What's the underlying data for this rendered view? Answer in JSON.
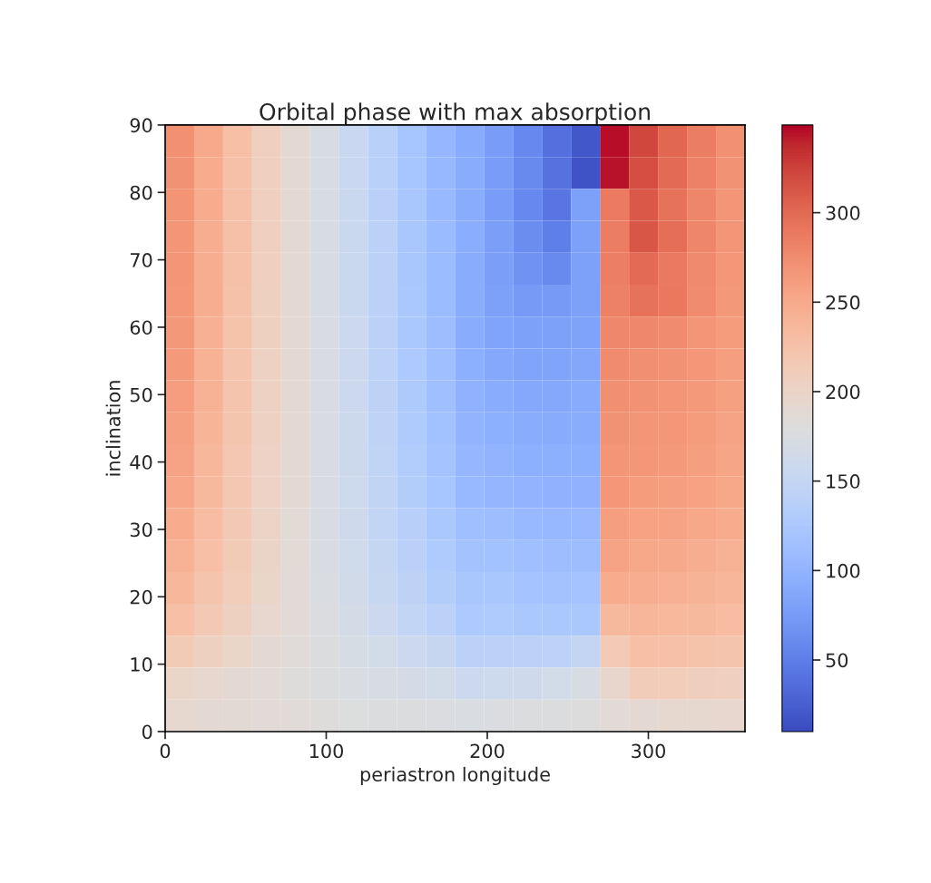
{
  "chart_data": {
    "type": "heatmap",
    "title": "Orbital phase with max absorption",
    "xlabel": "periastron longitude",
    "ylabel": "inclination",
    "xlim": [
      0,
      360
    ],
    "xticks": [
      0,
      100,
      200,
      300
    ],
    "ylim": [
      0,
      90
    ],
    "yticks": [
      0,
      10,
      20,
      30,
      40,
      50,
      60,
      70,
      80,
      90
    ],
    "clim": [
      10,
      349
    ],
    "cticks": [
      50,
      100,
      150,
      200,
      250,
      300
    ],
    "cells": [
      [
        272,
        250,
        228,
        207,
        190,
        172,
        155,
        138,
        120,
        104,
        90,
        75,
        58,
        38,
        18,
        346,
        322,
        302,
        286,
        272
      ],
      [
        270,
        248,
        226,
        206,
        189,
        172,
        155,
        138,
        121,
        105,
        91,
        76,
        60,
        40,
        16,
        344,
        318,
        300,
        284,
        270
      ],
      [
        269,
        248,
        227,
        206,
        190,
        172,
        156,
        139,
        122,
        106,
        92,
        76,
        58,
        42,
        80,
        287,
        311,
        294,
        279,
        267
      ],
      [
        268,
        247,
        226,
        206,
        190,
        172,
        156,
        140,
        122,
        107,
        93,
        78,
        62,
        50,
        80,
        286,
        312,
        297,
        280,
        267
      ],
      [
        267,
        247,
        226,
        206,
        190,
        172,
        156,
        140,
        123,
        108,
        92,
        78,
        68,
        60,
        80,
        285,
        300,
        289,
        277,
        266
      ],
      [
        266,
        246,
        225,
        205,
        189,
        172,
        156,
        141,
        124,
        109,
        92,
        80,
        74,
        74,
        80,
        283,
        294,
        290,
        276,
        265
      ],
      [
        265,
        244,
        224,
        205,
        189,
        173,
        157,
        141,
        125,
        110,
        92,
        84,
        80,
        80,
        82,
        278,
        278,
        275,
        268,
        262
      ],
      [
        263,
        243,
        223,
        204,
        189,
        173,
        157,
        142,
        126,
        112,
        94,
        88,
        84,
        84,
        86,
        276,
        273,
        270,
        266,
        260
      ],
      [
        261,
        242,
        222,
        204,
        189,
        173,
        158,
        143,
        127,
        113,
        98,
        92,
        88,
        88,
        90,
        273,
        270,
        268,
        264,
        258
      ],
      [
        258,
        240,
        221,
        203,
        189,
        173,
        159,
        144,
        129,
        115,
        100,
        96,
        92,
        90,
        92,
        270,
        268,
        266,
        262,
        256
      ],
      [
        255,
        237,
        219,
        202,
        188,
        173,
        159,
        146,
        131,
        118,
        104,
        100,
        96,
        94,
        95,
        268,
        266,
        264,
        260,
        254
      ],
      [
        253,
        235,
        218,
        201,
        188,
        174,
        160,
        147,
        133,
        120,
        106,
        102,
        99,
        97,
        98,
        266,
        262,
        260,
        257,
        252
      ],
      [
        248,
        232,
        216,
        200,
        187,
        174,
        161,
        149,
        136,
        124,
        112,
        110,
        106,
        105,
        106,
        260,
        257,
        256,
        252,
        248
      ],
      [
        243,
        228,
        213,
        199,
        187,
        174,
        163,
        151,
        139,
        128,
        116,
        115,
        112,
        110,
        110,
        255,
        252,
        250,
        247,
        243
      ],
      [
        237,
        223,
        210,
        197,
        186,
        175,
        164,
        154,
        143,
        133,
        122,
        122,
        118,
        117,
        118,
        248,
        246,
        244,
        241,
        238
      ],
      [
        228,
        216,
        205,
        194,
        185,
        176,
        167,
        158,
        149,
        140,
        126,
        128,
        124,
        124,
        125,
        235,
        238,
        236,
        234,
        232
      ],
      [
        213,
        205,
        197,
        190,
        184,
        177,
        171,
        165,
        158,
        153,
        140,
        140,
        140,
        142,
        150,
        215,
        228,
        226,
        224,
        222
      ],
      [
        198,
        194,
        190,
        185,
        182,
        178,
        175,
        172,
        168,
        165,
        158,
        160,
        162,
        165,
        172,
        195,
        212,
        210,
        208,
        206
      ],
      [
        192,
        190,
        188,
        186,
        184,
        181,
        179,
        178,
        177,
        176,
        175,
        176,
        177,
        178,
        180,
        186,
        190,
        192,
        192,
        193
      ]
    ]
  }
}
